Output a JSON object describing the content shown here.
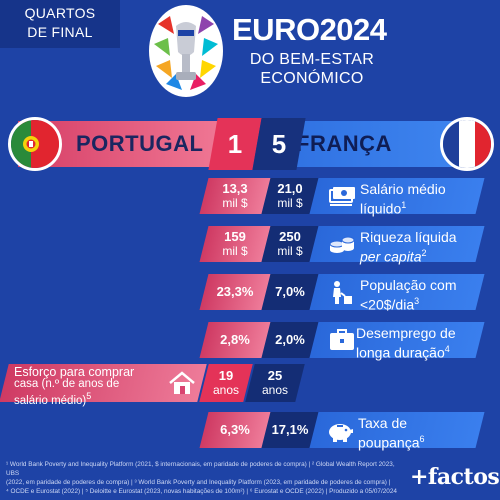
{
  "header": {
    "stage_line1": "QUARTOS",
    "stage_line2": "DE FINAL",
    "title": "EURO2024",
    "subtitle_line1": "DO BEM-ESTAR",
    "subtitle_line2": "ECONÓMICO"
  },
  "match": {
    "team_left": "PORTUGAL",
    "score_left": "1",
    "score_right": "5",
    "team_right": "FRANÇA"
  },
  "stats": [
    {
      "left_main": "13,3",
      "left_sub": "mil $",
      "right_main": "21,0",
      "right_sub": "mil $",
      "icon": "banknotes-icon",
      "label_line1": "Salário médio",
      "label_line2": "líquido",
      "note": "1"
    },
    {
      "left_main": "159",
      "left_sub": "mil $",
      "right_main": "250",
      "right_sub": "mil $",
      "icon": "coins-icon",
      "label_line1": "Riqueza líquida",
      "label_line2": "per capita",
      "note": "2"
    },
    {
      "left_main": "23,3%",
      "right_main": "7,0%",
      "icon": "poverty-icon",
      "label_line1": "População com",
      "label_line2": "<20$/dia",
      "note": "3"
    },
    {
      "left_main": "2,8%",
      "right_main": "2,0%",
      "icon": "briefcase-icon",
      "label_line1": "Desemprego de",
      "label_line2": "longa duração",
      "note": "4"
    },
    {
      "left_main": "19",
      "left_sub": "anos",
      "right_main": "25",
      "right_sub": "anos",
      "icon": "house-icon",
      "label_line1": "Esforço para comprar",
      "label_line2": "casa (n.º de anos de",
      "label_line3": "salário médio)",
      "note": "5"
    },
    {
      "left_main": "6,3%",
      "right_main": "17,1%",
      "icon": "piggy-bank-icon",
      "label_line1": "Taxa de",
      "label_line2": "poupança",
      "note": "6"
    }
  ],
  "footer": {
    "line1": "¹ World Bank Poverty and Inequality Platform (2021, $ internacionais, em paridade de poderes de compra) | ² Global Wealth Report 2023, UBS",
    "line2": "(2022, em paridade de poderes de compra) | ³ World Bank Poverty and Inequality Platform (2023, em paridade de poderes de compra) |",
    "line3": "⁴ OCDE e Eurostat (2022) | ⁵ Deloitte e Eurostat (2023, novas habitações de 100m²) | ⁶ Eurostat e OCDE (2022) | Produzido a 05/07/2024",
    "brand": "+factos"
  },
  "colors": {
    "background": "#1e43a6",
    "portugal": "#e43358",
    "france": "#2e6fe0",
    "navy": "#142d75"
  }
}
